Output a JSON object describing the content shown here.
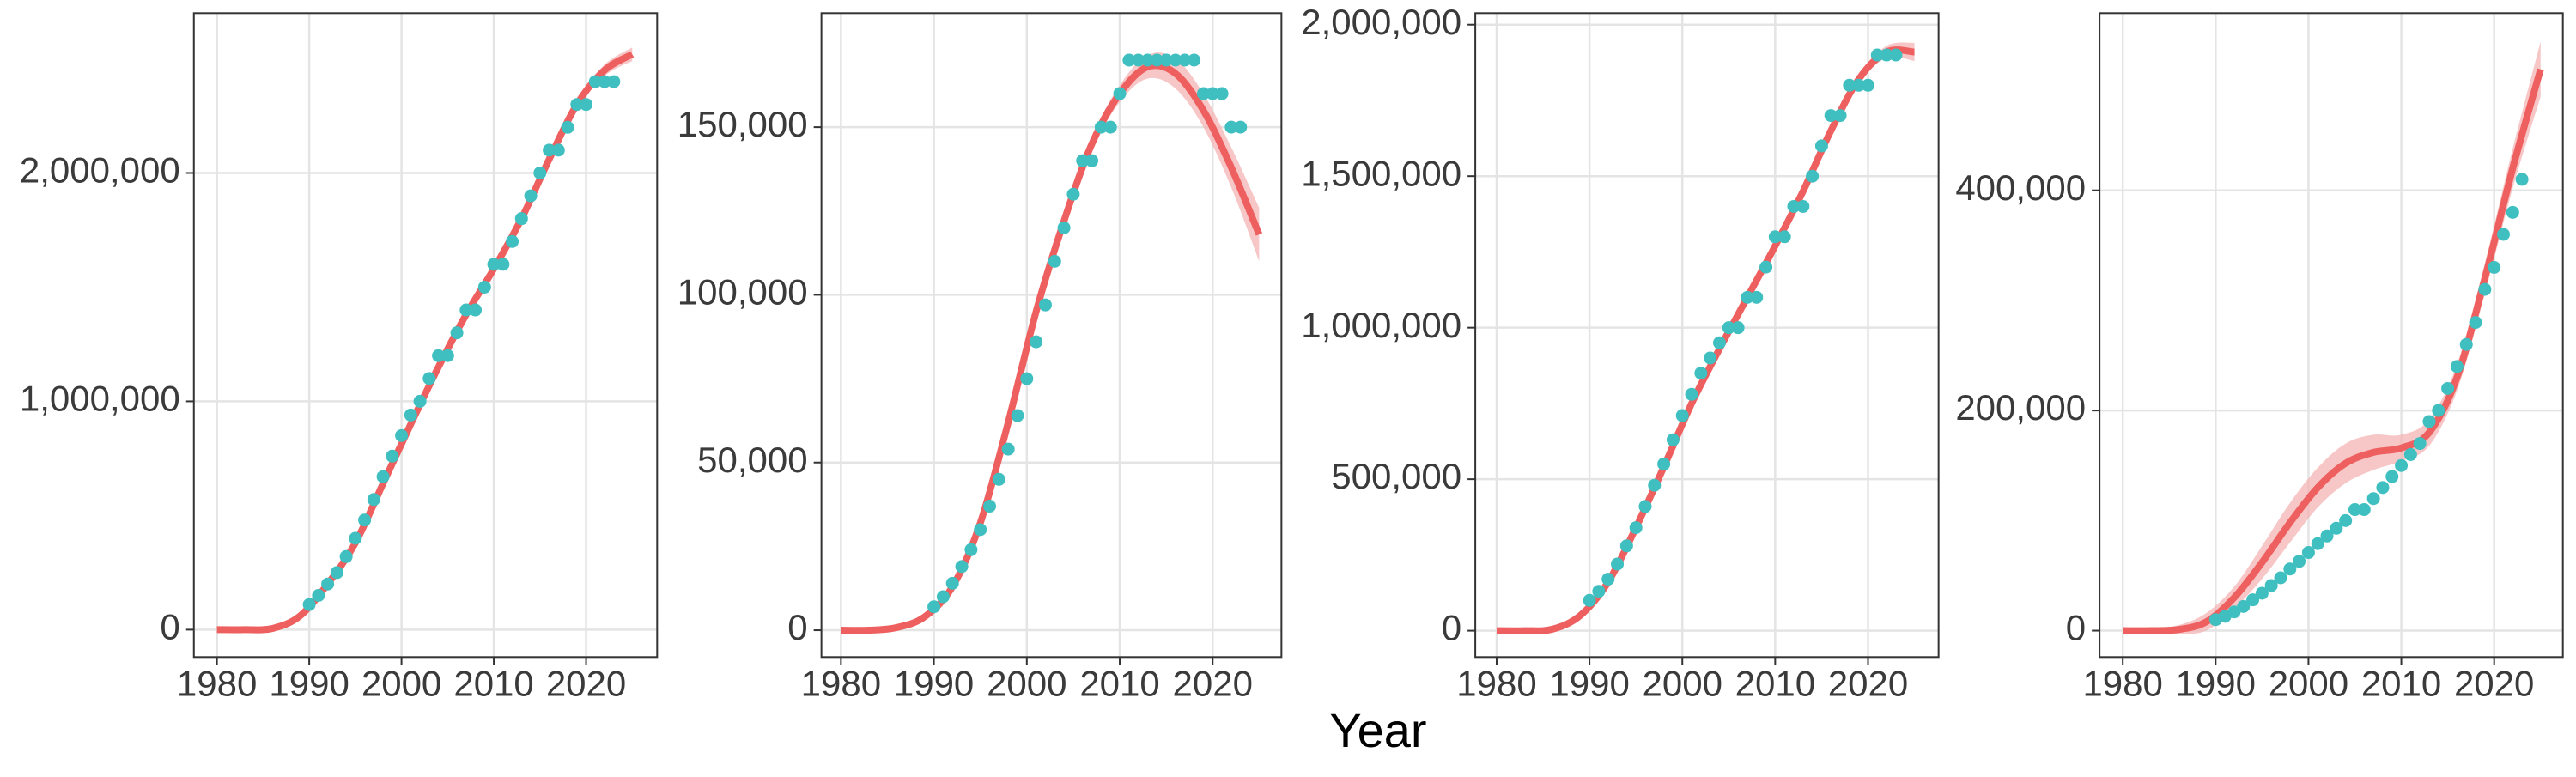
{
  "x_label": "Year",
  "chart_data": [
    {
      "type": "scatter",
      "xlim": [
        1977.5,
        2027.7
      ],
      "ylim": [
        -120000,
        2700000
      ],
      "xticks": [
        1980,
        1990,
        2000,
        2010,
        2020
      ],
      "yticks": [
        0,
        {
          "value": 1000000,
          "label": "1,000,000"
        },
        {
          "value": 2000000,
          "label": "2,000,000"
        }
      ],
      "points": {
        "color": "#3fbfc0",
        "x": [
          1990,
          1991,
          1992,
          1993,
          1994,
          1995,
          1996,
          1997,
          1998,
          1999,
          2000,
          2001,
          2002,
          2003,
          2004,
          2005,
          2006,
          2007,
          2008,
          2009,
          2010,
          2011,
          2012,
          2013,
          2014,
          2015,
          2016,
          2017,
          2018,
          2019,
          2020,
          2021,
          2022,
          2023
        ],
        "values": [
          110000,
          150000,
          200000,
          250000,
          320000,
          400000,
          480000,
          570000,
          670000,
          760000,
          850000,
          940000,
          1000000,
          1100000,
          1200000,
          1200000,
          1300000,
          1400000,
          1400000,
          1500000,
          1600000,
          1600000,
          1700000,
          1800000,
          1900000,
          2000000,
          2100000,
          2100000,
          2200000,
          2300000,
          2300000,
          2400000,
          2400000,
          2400000
        ]
      },
      "fit": {
        "color": "#ee5f5f",
        "band_color": "#f4b3b3",
        "x": [
          1980,
          1983,
          1986,
          1989,
          1992,
          1995,
          1998,
          2001,
          2004,
          2007,
          2010,
          2013,
          2016,
          2019,
          2022,
          2025
        ],
        "values": [
          0,
          0,
          5000,
          60000,
          200000,
          380000,
          640000,
          900000,
          1150000,
          1380000,
          1580000,
          1800000,
          2060000,
          2300000,
          2450000,
          2520000
        ],
        "lower": [
          -10000,
          -8000,
          -5000,
          45000,
          185000,
          365000,
          625000,
          885000,
          1135000,
          1365000,
          1565000,
          1785000,
          2045000,
          2280000,
          2425000,
          2490000
        ],
        "upper": [
          10000,
          8000,
          15000,
          75000,
          215000,
          395000,
          655000,
          915000,
          1165000,
          1395000,
          1595000,
          1815000,
          2075000,
          2320000,
          2475000,
          2550000
        ]
      }
    },
    {
      "type": "scatter",
      "xlim": [
        1977.9,
        2027.4
      ],
      "ylim": [
        -8000,
        184000
      ],
      "xticks": [
        1980,
        1990,
        2000,
        2010,
        2020
      ],
      "yticks": [
        0,
        {
          "value": 50000,
          "label": "50,000"
        },
        {
          "value": 100000,
          "label": "100,000"
        },
        {
          "value": 150000,
          "label": "150,000"
        }
      ],
      "points": {
        "color": "#3fbfc0",
        "x": [
          1990,
          1991,
          1992,
          1993,
          1994,
          1995,
          1996,
          1997,
          1998,
          1999,
          2000,
          2001,
          2002,
          2003,
          2004,
          2005,
          2006,
          2007,
          2008,
          2009,
          2010,
          2011,
          2012,
          2013,
          2014,
          2015,
          2016,
          2017,
          2018,
          2019,
          2020,
          2021,
          2022,
          2023
        ],
        "values": [
          7000,
          10000,
          14000,
          19000,
          24000,
          30000,
          37000,
          45000,
          54000,
          64000,
          75000,
          86000,
          97000,
          110000,
          120000,
          130000,
          140000,
          140000,
          150000,
          150000,
          160000,
          170000,
          170000,
          170000,
          170000,
          170000,
          170000,
          170000,
          170000,
          160000,
          160000,
          160000,
          150000,
          150000
        ]
      },
      "fit": {
        "color": "#ee5f5f",
        "band_color": "#f4b3b3",
        "x": [
          1980,
          1983,
          1986,
          1989,
          1992,
          1995,
          1998,
          2001,
          2004,
          2007,
          2010,
          2013,
          2016,
          2019,
          2022,
          2025
        ],
        "values": [
          0,
          0,
          800,
          4000,
          13000,
          32000,
          62000,
          95000,
          122000,
          145000,
          160000,
          168000,
          166000,
          155000,
          138000,
          118000
        ],
        "lower": [
          -800,
          -600,
          0,
          3000,
          12000,
          31000,
          60500,
          93500,
          120500,
          143000,
          157500,
          164500,
          161500,
          150000,
          132000,
          110000
        ],
        "upper": [
          800,
          600,
          1600,
          5000,
          14000,
          33000,
          63500,
          96500,
          123500,
          147000,
          162500,
          171500,
          170500,
          160000,
          144000,
          126000
        ]
      }
    },
    {
      "type": "scatter",
      "xlim": [
        1977.7,
        2027.6
      ],
      "ylim": [
        -87000,
        2038000
      ],
      "xticks": [
        1980,
        1990,
        2000,
        2010,
        2020
      ],
      "yticks": [
        0,
        {
          "value": 500000,
          "label": "500,000"
        },
        {
          "value": 1000000,
          "label": "1,000,000"
        },
        {
          "value": 1500000,
          "label": "1,500,000"
        },
        {
          "value": 2000000,
          "label": "2,000,000"
        }
      ],
      "points": {
        "color": "#3fbfc0",
        "x": [
          1990,
          1991,
          1992,
          1993,
          1994,
          1995,
          1996,
          1997,
          1998,
          1999,
          2000,
          2001,
          2002,
          2003,
          2004,
          2005,
          2006,
          2007,
          2008,
          2009,
          2010,
          2011,
          2012,
          2013,
          2014,
          2015,
          2016,
          2017,
          2018,
          2019,
          2020,
          2021,
          2022,
          2023
        ],
        "values": [
          100000,
          130000,
          170000,
          220000,
          280000,
          340000,
          410000,
          480000,
          550000,
          630000,
          710000,
          780000,
          850000,
          900000,
          950000,
          1000000,
          1000000,
          1100000,
          1100000,
          1200000,
          1300000,
          1300000,
          1400000,
          1400000,
          1500000,
          1600000,
          1700000,
          1700000,
          1800000,
          1800000,
          1800000,
          1900000,
          1900000,
          1900000
        ]
      },
      "fit": {
        "color": "#ee5f5f",
        "band_color": "#f4b3b3",
        "x": [
          1980,
          1983,
          1986,
          1989,
          1992,
          1995,
          1998,
          2001,
          2004,
          2007,
          2010,
          2013,
          2016,
          2019,
          2022,
          2025
        ],
        "values": [
          0,
          0,
          5000,
          50000,
          160000,
          340000,
          540000,
          750000,
          930000,
          1100000,
          1270000,
          1450000,
          1650000,
          1820000,
          1910000,
          1910000
        ],
        "lower": [
          -8000,
          -6000,
          -3000,
          40000,
          150000,
          330000,
          530000,
          740000,
          920000,
          1090000,
          1260000,
          1440000,
          1640000,
          1805000,
          1890000,
          1880000
        ],
        "upper": [
          8000,
          6000,
          13000,
          60000,
          170000,
          350000,
          550000,
          760000,
          940000,
          1110000,
          1280000,
          1460000,
          1660000,
          1835000,
          1930000,
          1940000
        ]
      }
    },
    {
      "type": "scatter",
      "xlim": [
        1977.5,
        2027.4
      ],
      "ylim": [
        -24000,
        561000
      ],
      "xticks": [
        1980,
        1990,
        2000,
        2010,
        2020
      ],
      "yticks": [
        0,
        {
          "value": 200000,
          "label": "200,000"
        },
        {
          "value": 400000,
          "label": "400,000"
        }
      ],
      "points": {
        "color": "#3fbfc0",
        "x": [
          1990,
          1991,
          1992,
          1993,
          1994,
          1995,
          1996,
          1997,
          1998,
          1999,
          2000,
          2001,
          2002,
          2003,
          2004,
          2005,
          2006,
          2007,
          2008,
          2009,
          2010,
          2011,
          2012,
          2013,
          2014,
          2015,
          2016,
          2017,
          2018,
          2019,
          2020,
          2021,
          2022,
          2023
        ],
        "values": [
          10000,
          13000,
          17000,
          22000,
          28000,
          34000,
          41000,
          48000,
          56000,
          63000,
          71000,
          79000,
          86000,
          93000,
          100000,
          110000,
          110000,
          120000,
          130000,
          140000,
          150000,
          160000,
          170000,
          190000,
          200000,
          220000,
          240000,
          260000,
          280000,
          310000,
          330000,
          360000,
          380000,
          410000
        ]
      },
      "fit": {
        "color": "#ee5f5f",
        "band_color": "#f4b3b3",
        "x": [
          1980,
          1983,
          1986,
          1989,
          1992,
          1995,
          1998,
          2001,
          2004,
          2007,
          2010,
          2013,
          2016,
          2019,
          2022,
          2025
        ],
        "values": [
          0,
          0,
          1000,
          8000,
          30000,
          62000,
          98000,
          130000,
          152000,
          162000,
          166000,
          180000,
          230000,
          320000,
          420000,
          510000
        ],
        "lower": [
          -3000,
          -2500,
          -3000,
          0,
          20000,
          47000,
          80000,
          112000,
          134000,
          146000,
          154000,
          168000,
          218000,
          306000,
          402000,
          485000
        ],
        "upper": [
          3000,
          2500,
          5000,
          16000,
          40000,
          77000,
          116000,
          148000,
          170000,
          178000,
          178000,
          192000,
          242000,
          334000,
          438000,
          535000
        ]
      }
    }
  ]
}
